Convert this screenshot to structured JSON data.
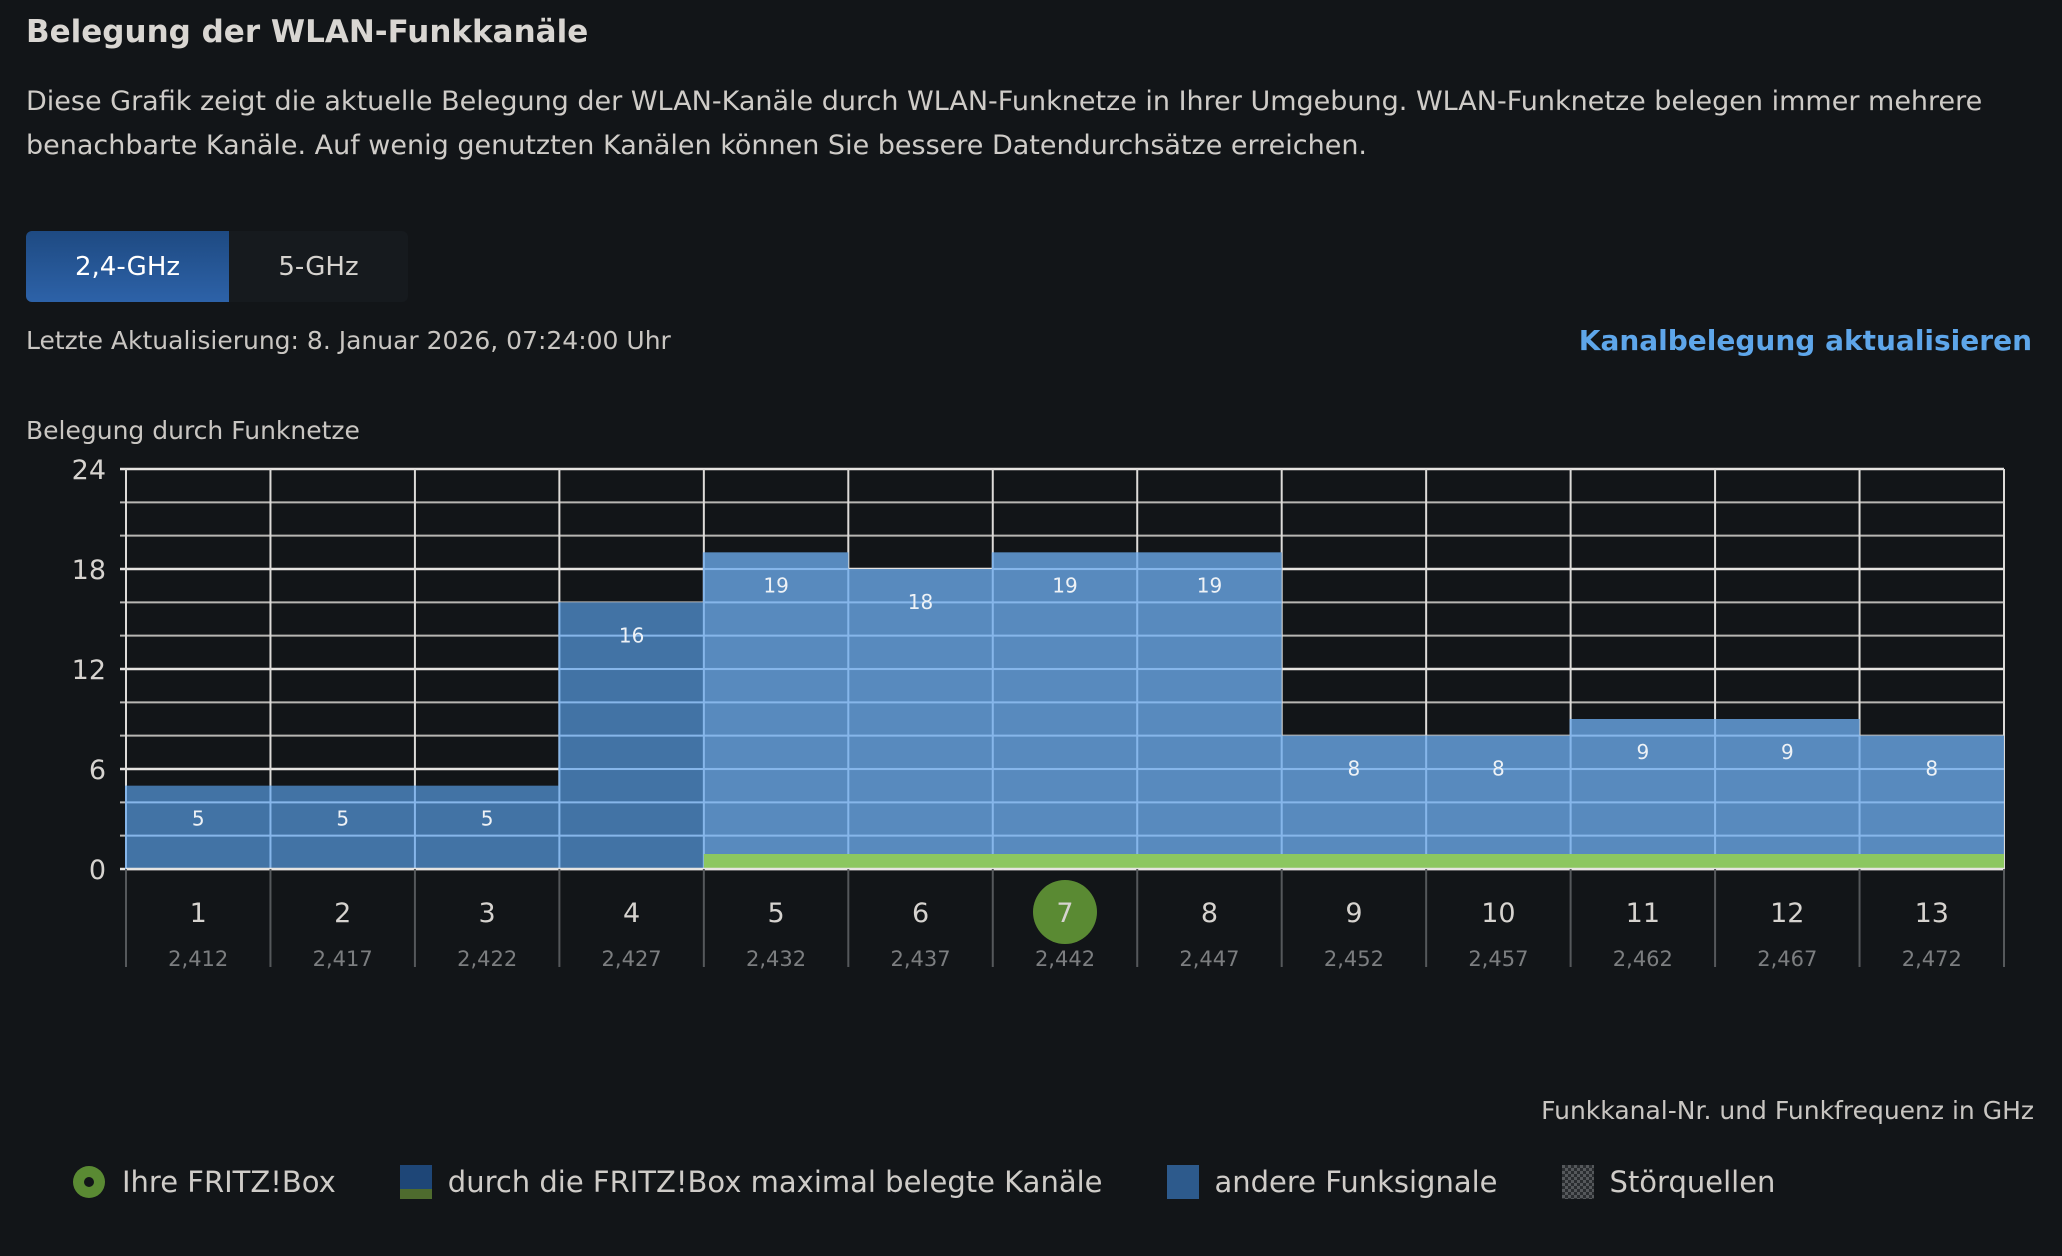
{
  "header": {
    "title": "Belegung der WLAN-Funkkanäle",
    "description": "Diese Grafik zeigt die aktuelle Belegung der WLAN-Kanäle durch WLAN-Funknetze in Ihrer Umgebung. WLAN-Funknetze belegen immer mehrere benachbarte Kanäle. Auf wenig genutzten Kanälen können Sie bessere Datendurchsätze erreichen."
  },
  "tabs": [
    {
      "label": "2,4-GHz",
      "active": true
    },
    {
      "label": "5-GHz",
      "active": false
    }
  ],
  "last_update": "Letzte Aktualisierung: 8. Januar 2026, 07:24:00 Uhr",
  "refresh_link": "Kanalbelegung aktualisieren",
  "colors": {
    "fritzbox_channels": "#4477aa",
    "other_signals": "#5b8ec4",
    "own_channel": "#5a8a33",
    "fritzbox_band": "#8cc760",
    "link": "#5ea6ea"
  },
  "chart_data": {
    "type": "bar",
    "ylabel": "Belegung durch Funknetze",
    "xlabel": "Funkkanal-Nr. und Funkfrequenz in GHz",
    "ylim": [
      0,
      24
    ],
    "yticks": [
      0,
      6,
      12,
      18,
      24
    ],
    "categories": [
      "1",
      "2",
      "3",
      "4",
      "5",
      "6",
      "7",
      "8",
      "9",
      "10",
      "11",
      "12",
      "13"
    ],
    "frequencies": [
      "2,412",
      "2,417",
      "2,422",
      "2,427",
      "2,432",
      "2,437",
      "2,442",
      "2,447",
      "2,452",
      "2,457",
      "2,462",
      "2,467",
      "2,472"
    ],
    "values": [
      5,
      5,
      5,
      16,
      19,
      18,
      19,
      19,
      8,
      8,
      9,
      9,
      8
    ],
    "fritzbox_channel": "7",
    "fritzbox_band_channels": [
      "5",
      "13"
    ],
    "grid": true
  },
  "legend": [
    {
      "label": "Ihre FRITZ!Box",
      "icon": "green-dot"
    },
    {
      "label": "durch die FRITZ!Box maximal belegte Kanäle",
      "icon": "blue-green-square"
    },
    {
      "label": "andere Funksignale",
      "icon": "blue-square"
    },
    {
      "label": "Störquellen",
      "icon": "checker-square"
    }
  ]
}
